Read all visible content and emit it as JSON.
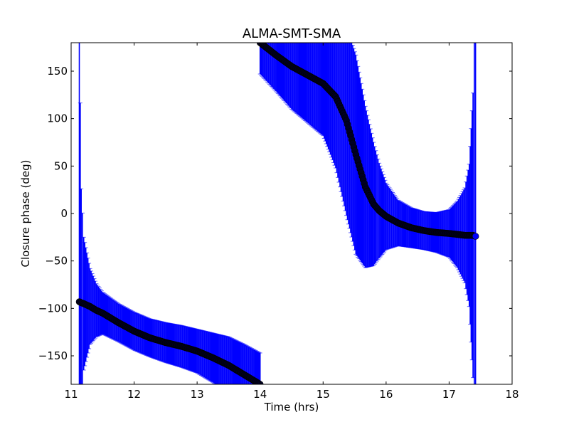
{
  "chart_data": {
    "type": "scatter",
    "title": "ALMA-SMT-SMA",
    "xlabel": "Time (hrs)",
    "ylabel": "Closure phase (deg)",
    "xlim": [
      11,
      18
    ],
    "ylim": [
      -180,
      180
    ],
    "xticks": [
      11,
      12,
      13,
      14,
      15,
      16,
      17,
      18
    ],
    "xtick_labels": [
      "11",
      "12",
      "13",
      "14",
      "15",
      "16",
      "17",
      "18"
    ],
    "yticks": [
      -150,
      -100,
      -50,
      0,
      50,
      100,
      150
    ],
    "ytick_labels": [
      "−150",
      "−100",
      "−50",
      "0",
      "50",
      "100",
      "150"
    ],
    "grid": false,
    "errorbar_color": "#0000ff",
    "marker_color": "#000022",
    "last_marker_color": "#0000ff",
    "series": [
      {
        "x": [
          11.13,
          11.16,
          11.2,
          11.3,
          11.4,
          11.5,
          11.75,
          12.0,
          12.25,
          12.5,
          12.75,
          13.0,
          13.25,
          13.5,
          13.75,
          14.0
        ],
        "y": [
          -93,
          -94,
          -95,
          -98,
          -102,
          -105,
          -115,
          -124,
          -131,
          -136,
          -140,
          -145,
          -152,
          -160,
          -170,
          -180
        ],
        "err": [
          300,
          120,
          70,
          40,
          28,
          22,
          20,
          20,
          20,
          21,
          22,
          23,
          26,
          30,
          32,
          33
        ]
      },
      {
        "x": [
          14.0,
          14.25,
          14.5,
          14.75,
          15.0,
          15.2,
          15.37,
          15.52,
          15.67,
          15.8,
          15.89,
          16.0,
          16.19,
          16.4,
          16.6,
          16.8,
          17.0,
          17.13,
          17.25,
          17.32,
          17.38,
          17.42
        ],
        "y": [
          180,
          167,
          155,
          146,
          137,
          123,
          98,
          62,
          28,
          10,
          3,
          -3,
          -10,
          -15,
          -18,
          -20,
          -21,
          -22,
          -23,
          -23,
          -23,
          -24
        ],
        "err": [
          33,
          38,
          45,
          50,
          55,
          75,
          100,
          105,
          85,
          65,
          50,
          35,
          24,
          21,
          20,
          21,
          25,
          35,
          50,
          75,
          150,
          400
        ]
      }
    ]
  }
}
